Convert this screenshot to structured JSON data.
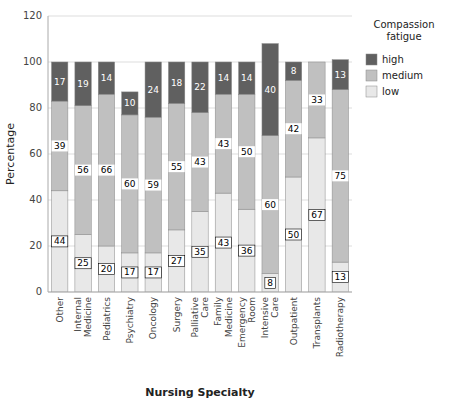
{
  "chart_data": {
    "type": "bar",
    "stacked": true,
    "data_labels": true,
    "grid": true,
    "legend": "right",
    "categories": [
      "Other",
      "Internal\nMedicine",
      "Pediatrics",
      "Psychiatry",
      "Oncology",
      "Surgery",
      "Palliative\nCare",
      "Family\nMedicine",
      "Emergency\nRoom",
      "Intensive\nCare",
      "Outpatient",
      "Transplants",
      "Radiotherapy"
    ],
    "series": [
      {
        "name": "low",
        "color": "#e8e8e8",
        "values": [
          44,
          25,
          20,
          17,
          17,
          27,
          35,
          43,
          36,
          8,
          50,
          67,
          13
        ]
      },
      {
        "name": "medium",
        "color": "#c0c0c0",
        "values": [
          39,
          56,
          66,
          60,
          59,
          55,
          43,
          43,
          50,
          60,
          42,
          33,
          75
        ]
      },
      {
        "name": "high",
        "color": "#606060",
        "values": [
          17,
          19,
          14,
          10,
          24,
          18,
          22,
          14,
          14,
          40,
          8,
          0,
          13
        ]
      }
    ],
    "xlabel": "Nursing Specialty",
    "ylabel": "Percentage",
    "legend_title": "Compassion\nfatigue",
    "ylim": [
      0,
      120
    ],
    "yticks": [
      0,
      20,
      40,
      60,
      80,
      100,
      120
    ]
  }
}
